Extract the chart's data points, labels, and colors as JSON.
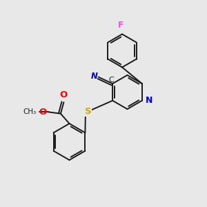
{
  "bg_color": "#e8e8e8",
  "bond_color": "#1a1a1a",
  "atom_colors": {
    "N": "#0000cc",
    "O": "#ff0000",
    "S": "#ccaa00",
    "F": "#ff44ff",
    "C_label": "#1a1a1a"
  }
}
